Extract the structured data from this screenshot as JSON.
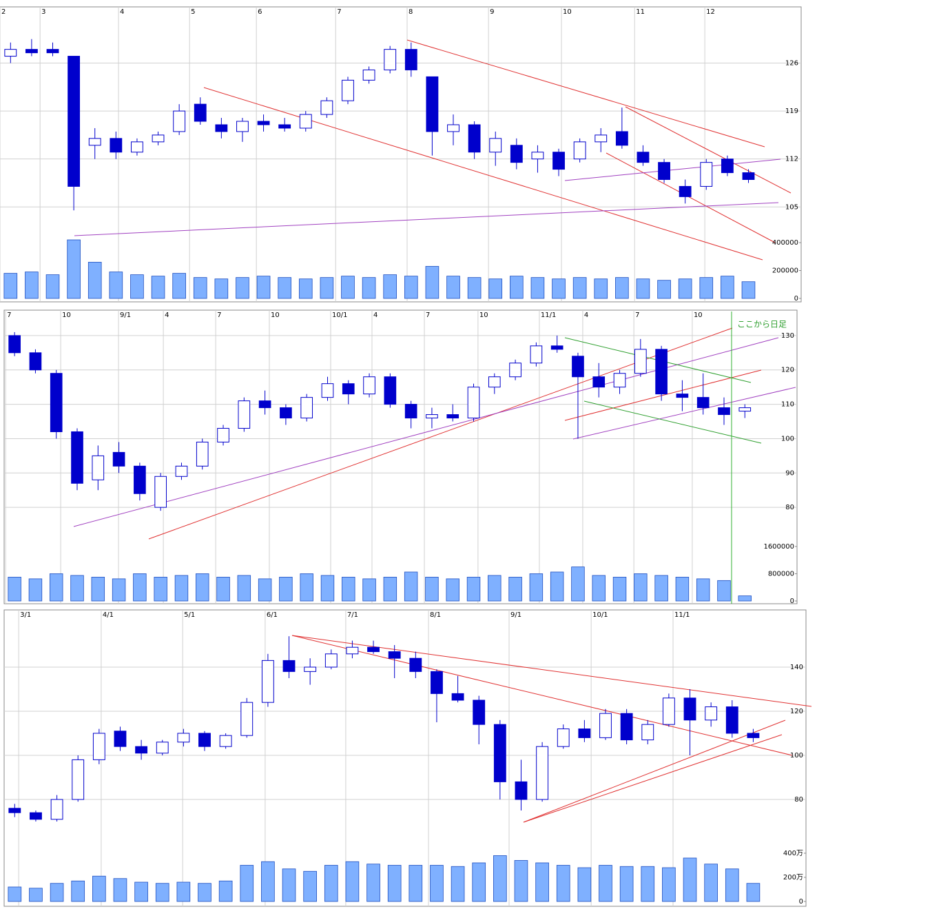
{
  "chart_data": [
    {
      "type": "candlestick",
      "x": [
        0.5,
        1.5,
        2.5,
        3.5,
        4.5,
        5.5,
        6.5,
        7.5,
        8.5,
        9.5,
        10.5,
        11.5,
        12.5,
        13.5,
        14.5,
        15.5,
        16.5,
        17.5,
        18.5,
        19.5,
        20.5,
        21.5,
        22.5,
        23.5,
        24.5,
        25.5,
        26.5,
        27.5,
        28.5,
        29.5,
        30.5,
        31.5,
        32.5,
        33.5,
        34.5,
        35.5
      ],
      "open": [
        127,
        128,
        128,
        127,
        114,
        115,
        113,
        114.5,
        116,
        120,
        117,
        116,
        117.5,
        117,
        116.5,
        118.5,
        120.5,
        123.5,
        125,
        128,
        124,
        116,
        117,
        113,
        114,
        112,
        113,
        112,
        114.5,
        116,
        113,
        111.5,
        108,
        108,
        112,
        110
      ],
      "high": [
        129,
        129.5,
        129,
        127,
        116.5,
        116,
        115,
        116,
        120,
        121,
        118,
        118,
        118.5,
        118,
        119,
        121,
        124,
        125.5,
        128.5,
        129,
        124,
        118.5,
        117.5,
        116,
        115,
        114,
        113.5,
        115,
        116.5,
        119.5,
        114,
        112,
        109,
        112,
        112.5,
        110.5
      ],
      "low": [
        126,
        127,
        127,
        104.5,
        112,
        112,
        112.5,
        114,
        115.5,
        117,
        115,
        114.5,
        116,
        116,
        116,
        118,
        120,
        123,
        124.5,
        124,
        112.5,
        114,
        112,
        111,
        110.5,
        110,
        109.5,
        111.5,
        113,
        113.5,
        111,
        108.5,
        105.5,
        107.5,
        109.5,
        108.5
      ],
      "close": [
        128,
        127.5,
        127.5,
        108,
        115,
        113,
        114.5,
        115.5,
        119,
        117.5,
        116,
        117.5,
        117,
        116.5,
        118.5,
        120.5,
        123.5,
        125,
        128,
        125,
        116,
        117,
        113,
        115,
        111.5,
        113,
        110.5,
        114.5,
        115.5,
        114,
        111.5,
        109,
        106.5,
        111.5,
        110,
        109
      ],
      "volume": [
        180000,
        190000,
        170000,
        420000,
        260000,
        190000,
        170000,
        160000,
        180000,
        150000,
        140000,
        150000,
        160000,
        150000,
        140000,
        150000,
        160000,
        150000,
        170000,
        160000,
        230000,
        160000,
        150000,
        140000,
        160000,
        150000,
        140000,
        150000,
        140000,
        150000,
        140000,
        130000,
        140000,
        150000,
        160000,
        120000
      ],
      "xlim": [
        0,
        38
      ],
      "xticks": [
        {
          "value": 0,
          "label": "2"
        },
        {
          "value": 1.9,
          "label": "3"
        },
        {
          "value": 5.62,
          "label": "4"
        },
        {
          "value": 8.99,
          "label": "5"
        },
        {
          "value": 12.16,
          "label": "6"
        },
        {
          "value": 15.92,
          "label": "7"
        },
        {
          "value": 19.31,
          "label": "8"
        },
        {
          "value": 23.17,
          "label": "9"
        },
        {
          "value": 26.63,
          "label": "10"
        },
        {
          "value": 30.1,
          "label": "11"
        },
        {
          "value": 33.43,
          "label": "12"
        }
      ],
      "ylim": [
        100.5,
        134.2
      ],
      "yticks": [
        105,
        112,
        119,
        126
      ],
      "y2lim": [
        0,
        435000
      ],
      "y2ticks": [
        0,
        200000,
        400000
      ],
      "up_color": "#ffffff",
      "down_color": "#0000cc",
      "volume_color": "#7fb0ff",
      "grid": true
    },
    {
      "type": "candlestick",
      "annotation": "ここから日足",
      "x": [
        0.5,
        1.5,
        2.5,
        3.5,
        4.5,
        5.5,
        6.5,
        7.5,
        8.5,
        9.5,
        10.5,
        11.5,
        12.5,
        13.5,
        14.5,
        15.5,
        16.5,
        17.5,
        18.5,
        19.5,
        20.5,
        21.5,
        22.5,
        23.5,
        24.5,
        25.5,
        26.5,
        27.5,
        28.5,
        29.5,
        30.5,
        31.5,
        32.5,
        33.5,
        34.5,
        35.5
      ],
      "open": [
        130,
        125,
        119,
        102,
        88,
        96,
        92,
        80,
        89,
        92,
        99,
        103,
        111,
        109,
        106,
        112,
        116,
        113,
        118,
        110,
        106,
        107,
        106,
        115,
        118,
        122,
        127,
        124,
        118,
        115,
        119,
        126,
        113,
        112,
        109,
        108
      ],
      "high": [
        131,
        126,
        120,
        103,
        98,
        99,
        93,
        90,
        93,
        100,
        104,
        112,
        114,
        110,
        113,
        118,
        117,
        119,
        119,
        111,
        109,
        110,
        116,
        119,
        123,
        128,
        130,
        125,
        122,
        120,
        129,
        127,
        117,
        119,
        112,
        110
      ],
      "low": [
        124,
        119,
        100,
        85,
        85,
        90,
        82,
        79,
        88,
        91,
        98,
        102,
        107,
        104,
        105,
        111,
        110,
        112,
        109,
        103,
        103,
        105,
        105,
        113,
        117,
        121,
        125,
        100,
        112,
        113,
        118,
        111,
        108,
        107,
        104,
        106
      ],
      "close": [
        125,
        120,
        102,
        87,
        95,
        92,
        84,
        89,
        92,
        99,
        103,
        111,
        109,
        106,
        112,
        116,
        113,
        118,
        110,
        106,
        107,
        106,
        115,
        118,
        122,
        127,
        126,
        118,
        115,
        119,
        126,
        113,
        112,
        109,
        107,
        109
      ],
      "volume": [
        700000,
        650000,
        800000,
        750000,
        700000,
        650000,
        800000,
        700000,
        750000,
        800000,
        700000,
        750000,
        650000,
        700000,
        800000,
        750000,
        700000,
        650000,
        700000,
        850000,
        700000,
        650000,
        700000,
        750000,
        700000,
        800000,
        850000,
        1000000,
        750000,
        700000,
        800000,
        750000,
        700000,
        650000,
        600000,
        150000
      ],
      "xlim": [
        0,
        38
      ],
      "xticks": [
        {
          "value": 0.07,
          "label": "7"
        },
        {
          "value": 2.71,
          "label": "10"
        },
        {
          "value": 5.48,
          "label": "9/1"
        },
        {
          "value": 7.63,
          "label": "4"
        },
        {
          "value": 10.14,
          "label": "7"
        },
        {
          "value": 12.71,
          "label": "10"
        },
        {
          "value": 15.65,
          "label": "10/1"
        },
        {
          "value": 17.63,
          "label": "4"
        },
        {
          "value": 20.14,
          "label": "7"
        },
        {
          "value": 22.71,
          "label": "10"
        },
        {
          "value": 25.65,
          "label": "11/1"
        },
        {
          "value": 27.73,
          "label": "4"
        },
        {
          "value": 30.18,
          "label": "7"
        },
        {
          "value": 32.98,
          "label": "10"
        }
      ],
      "ylim": [
        70.2,
        137
      ],
      "yticks": [
        80,
        90,
        100,
        110,
        120,
        130
      ],
      "y2lim": [
        0,
        1760000
      ],
      "y2ticks": [
        0,
        800000,
        1600000
      ],
      "up_color": "#ffffff",
      "down_color": "#0000cc",
      "volume_color": "#7fb0ff",
      "grid": true
    },
    {
      "type": "candlestick",
      "x": [
        0.5,
        1.5,
        2.5,
        3.5,
        4.5,
        5.5,
        6.5,
        7.5,
        8.5,
        9.5,
        10.5,
        11.5,
        12.5,
        13.5,
        14.5,
        15.5,
        16.5,
        17.5,
        18.5,
        19.5,
        20.5,
        21.5,
        22.5,
        23.5,
        24.5,
        25.5,
        26.5,
        27.5,
        28.5,
        29.5,
        30.5,
        31.5,
        32.5,
        33.5,
        34.5,
        35.5
      ],
      "open": [
        76,
        74,
        71,
        80,
        98,
        111,
        104,
        101,
        106,
        110,
        104,
        109,
        124,
        143,
        138,
        140,
        146,
        149,
        147,
        144,
        138,
        128,
        125,
        114,
        88,
        80,
        104,
        112,
        108,
        119,
        107,
        114,
        126,
        116,
        122,
        110
      ],
      "high": [
        78,
        75,
        82,
        100,
        112,
        113,
        107,
        107,
        112,
        111,
        110,
        126,
        146,
        154,
        144,
        148,
        152,
        152,
        150,
        147,
        139,
        136,
        127,
        116,
        98,
        106,
        114,
        116,
        121,
        121,
        116,
        128,
        130,
        124,
        125,
        112
      ],
      "low": [
        72,
        70,
        70,
        79,
        96,
        102,
        98,
        100,
        104,
        102,
        103,
        108,
        122,
        135,
        132,
        139,
        144,
        146,
        135,
        135,
        115,
        124,
        105,
        80,
        75,
        79,
        103,
        106,
        107,
        105,
        105,
        113,
        100,
        113,
        108,
        106
      ],
      "close": [
        74,
        71,
        80,
        98,
        110,
        104,
        101,
        106,
        110,
        104,
        109,
        124,
        143,
        138,
        140,
        146,
        149,
        147,
        144,
        138,
        128,
        125,
        114,
        88,
        80,
        104,
        112,
        108,
        119,
        107,
        114,
        126,
        116,
        122,
        110,
        108
      ],
      "volume": [
        1200000,
        1100000,
        1500000,
        1700000,
        2100000,
        1900000,
        1600000,
        1500000,
        1600000,
        1500000,
        1700000,
        3000000,
        3300000,
        2700000,
        2500000,
        3000000,
        3300000,
        3100000,
        3000000,
        3000000,
        3000000,
        2900000,
        3200000,
        3800000,
        3400000,
        3200000,
        3000000,
        2800000,
        3000000,
        2900000,
        2900000,
        2800000,
        3600000,
        3100000,
        2700000,
        1500000
      ],
      "xlim": [
        0,
        38
      ],
      "xticks": [
        {
          "value": 0.69,
          "label": "3/1"
        },
        {
          "value": 4.6,
          "label": "4/1"
        },
        {
          "value": 8.46,
          "label": "5/1"
        },
        {
          "value": 12.37,
          "label": "6/1"
        },
        {
          "value": 16.19,
          "label": "7/1"
        },
        {
          "value": 20.11,
          "label": "8/1"
        },
        {
          "value": 23.93,
          "label": "9/1"
        },
        {
          "value": 27.82,
          "label": "10/1"
        },
        {
          "value": 31.7,
          "label": "11/1"
        }
      ],
      "ylim": [
        67.5,
        165.3
      ],
      "yticks": [
        80,
        100,
        120,
        140
      ],
      "y2lim": [
        0,
        6170000
      ],
      "y2ticks": [
        {
          "value": 0,
          "label": "0"
        },
        {
          "value": 2000000,
          "label": "200万"
        },
        {
          "value": 4000000,
          "label": "400万"
        }
      ],
      "up_color": "#ffffff",
      "down_color": "#0000cc",
      "volume_color": "#7fb0ff",
      "grid": true
    }
  ]
}
